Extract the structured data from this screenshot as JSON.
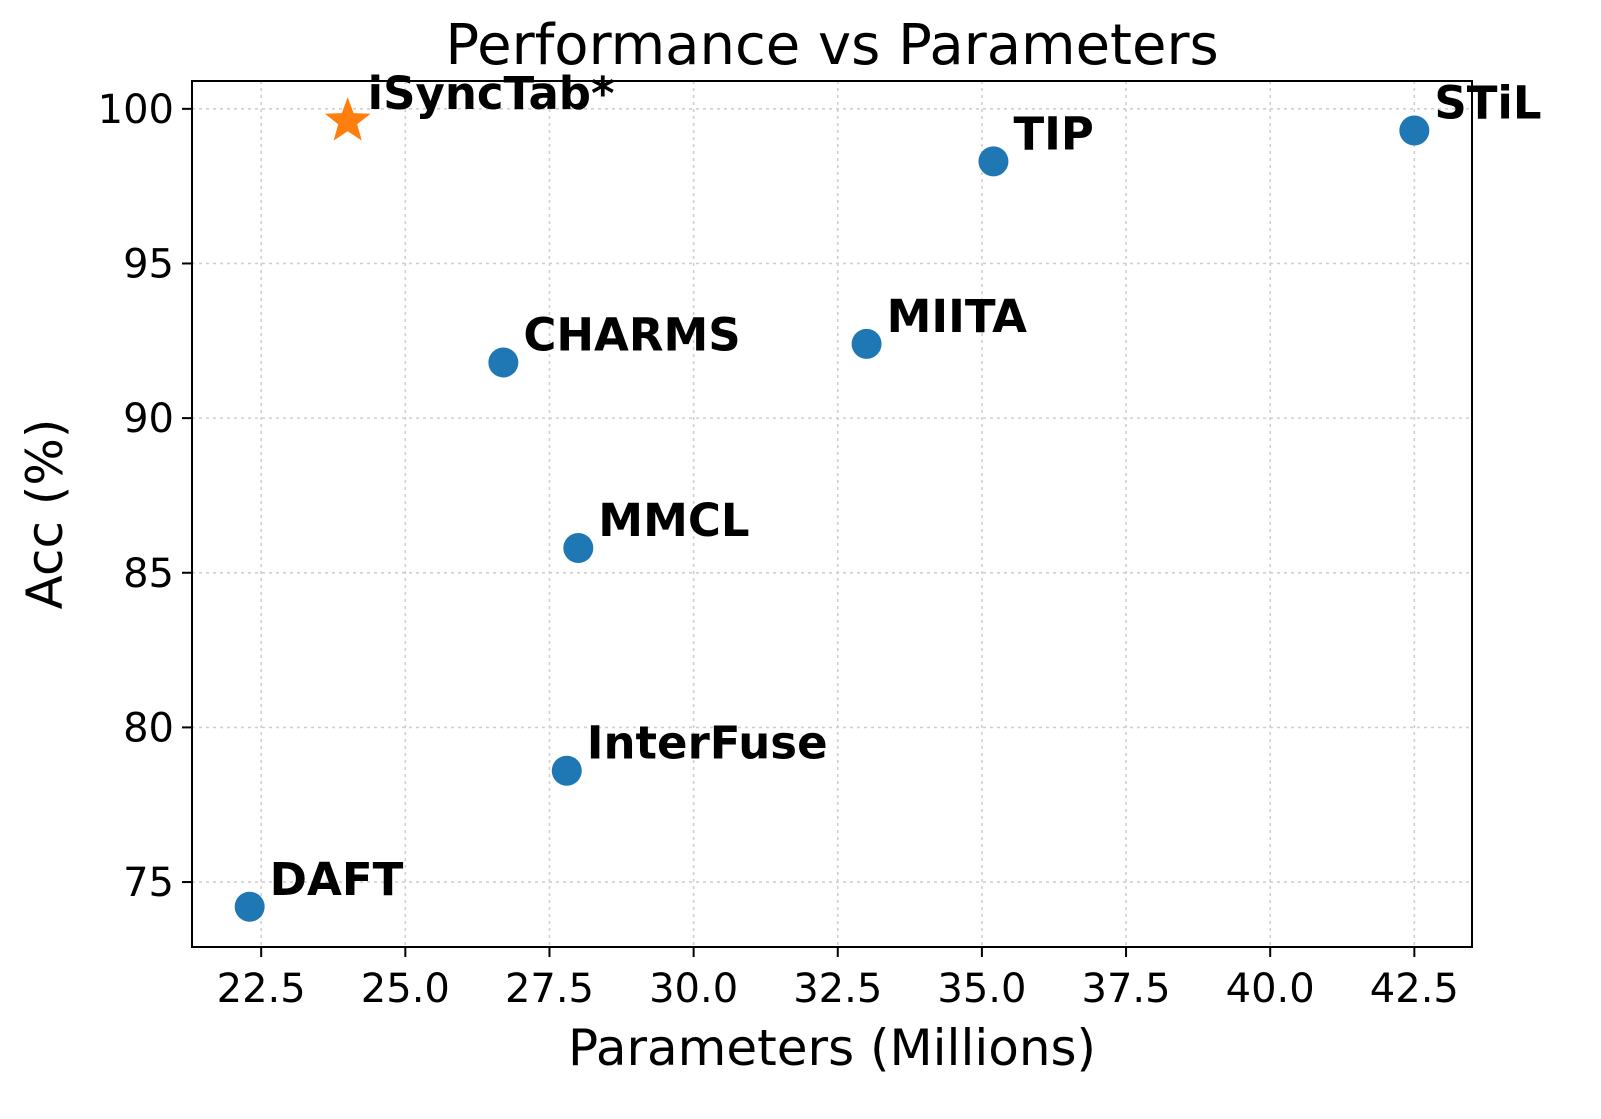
{
  "chart_data": {
    "type": "scatter",
    "title": "Performance vs Parameters",
    "xlabel": "Parameters (Millions)",
    "ylabel": "Acc (%)",
    "xlim": [
      21.3,
      43.5
    ],
    "ylim": [
      72.9,
      100.9
    ],
    "xticks": [
      22.5,
      25.0,
      27.5,
      30.0,
      32.5,
      35.0,
      37.5,
      40.0,
      42.5
    ],
    "xtick_labels": [
      "22.5",
      "25.0",
      "27.5",
      "30.0",
      "32.5",
      "35.0",
      "37.5",
      "40.0",
      "42.5"
    ],
    "yticks": [
      75,
      80,
      85,
      90,
      95,
      100
    ],
    "ytick_labels": [
      "75",
      "80",
      "85",
      "90",
      "95",
      "100"
    ],
    "grid": true,
    "points": [
      {
        "label": "iSyncTab*",
        "x": 24.0,
        "y": 99.6,
        "marker": "star",
        "color": "#ff7f0e"
      },
      {
        "label": "STiL",
        "x": 42.5,
        "y": 99.3,
        "marker": "circle",
        "color": "#1f77b4"
      },
      {
        "label": "TIP",
        "x": 35.2,
        "y": 98.3,
        "marker": "circle",
        "color": "#1f77b4"
      },
      {
        "label": "MIITA",
        "x": 33.0,
        "y": 92.4,
        "marker": "circle",
        "color": "#1f77b4"
      },
      {
        "label": "CHARMS",
        "x": 26.7,
        "y": 91.8,
        "marker": "circle",
        "color": "#1f77b4"
      },
      {
        "label": "MMCL",
        "x": 28.0,
        "y": 85.8,
        "marker": "circle",
        "color": "#1f77b4"
      },
      {
        "label": "InterFuse",
        "x": 27.8,
        "y": 78.6,
        "marker": "circle",
        "color": "#1f77b4"
      },
      {
        "label": "DAFT",
        "x": 22.3,
        "y": 74.2,
        "marker": "circle",
        "color": "#1f77b4"
      }
    ]
  }
}
